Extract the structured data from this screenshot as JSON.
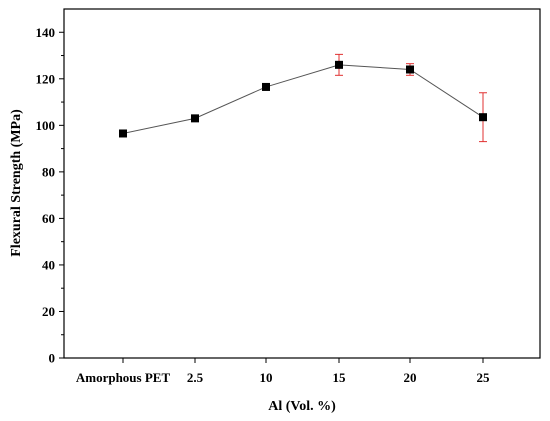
{
  "chart_data": {
    "type": "line",
    "title": "",
    "xlabel": "Al (Vol. %)",
    "ylabel": "Flexural Strength (MPa)",
    "categories": [
      "Amorphous PET",
      "2.5",
      "10",
      "15",
      "20",
      "25"
    ],
    "series": [
      {
        "values": [
          96.5,
          103,
          116.5,
          126,
          124,
          103.5
        ],
        "error": [
          1,
          1,
          1,
          4.5,
          2.5,
          10.5
        ],
        "line_color": "#555555",
        "marker_color": "#000000",
        "error_color": "#e03030"
      }
    ],
    "ylim": [
      0,
      150
    ],
    "yticks": [
      0,
      20,
      40,
      60,
      80,
      100,
      120,
      140
    ],
    "grid": false,
    "legend": "none"
  }
}
